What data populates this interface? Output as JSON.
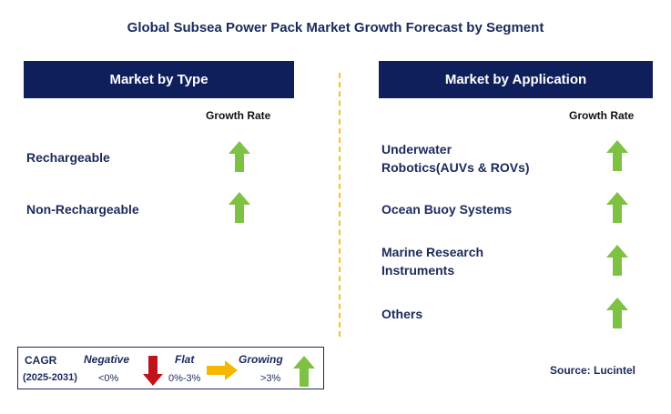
{
  "title": "Global Subsea Power Pack Market Growth Forecast by Segment",
  "left_panel": {
    "header": "Market by Type",
    "growth_label": "Growth Rate",
    "items": [
      {
        "label": "Rechargeable",
        "trend": "growing"
      },
      {
        "label": "Non-Rechargeable",
        "trend": "growing"
      }
    ]
  },
  "right_panel": {
    "header": "Market by Application",
    "growth_label": "Growth Rate",
    "items": [
      {
        "line1": "Underwater",
        "line2": "Robotics(AUVs & ROVs)",
        "trend": "growing"
      },
      {
        "line1": "Ocean Buoy Systems",
        "line2": "",
        "trend": "growing"
      },
      {
        "line1": "Marine Research",
        "line2": "Instruments",
        "trend": "growing"
      },
      {
        "line1": "Others",
        "line2": "",
        "trend": "growing"
      }
    ]
  },
  "legend": {
    "cagr": "CAGR",
    "period": "(2025-2031)",
    "negative": {
      "label": "Negative",
      "range": "<0%"
    },
    "flat": {
      "label": "Flat",
      "range": "0%-3%"
    },
    "growing": {
      "label": "Growing",
      "range": ">3%"
    }
  },
  "source": "Source: Lucintel",
  "colors": {
    "header_bg": "#0f1f5c",
    "growing": "#7dc242",
    "negative": "#c0141b",
    "flat": "#f5b800",
    "divider": "#f5c518"
  }
}
